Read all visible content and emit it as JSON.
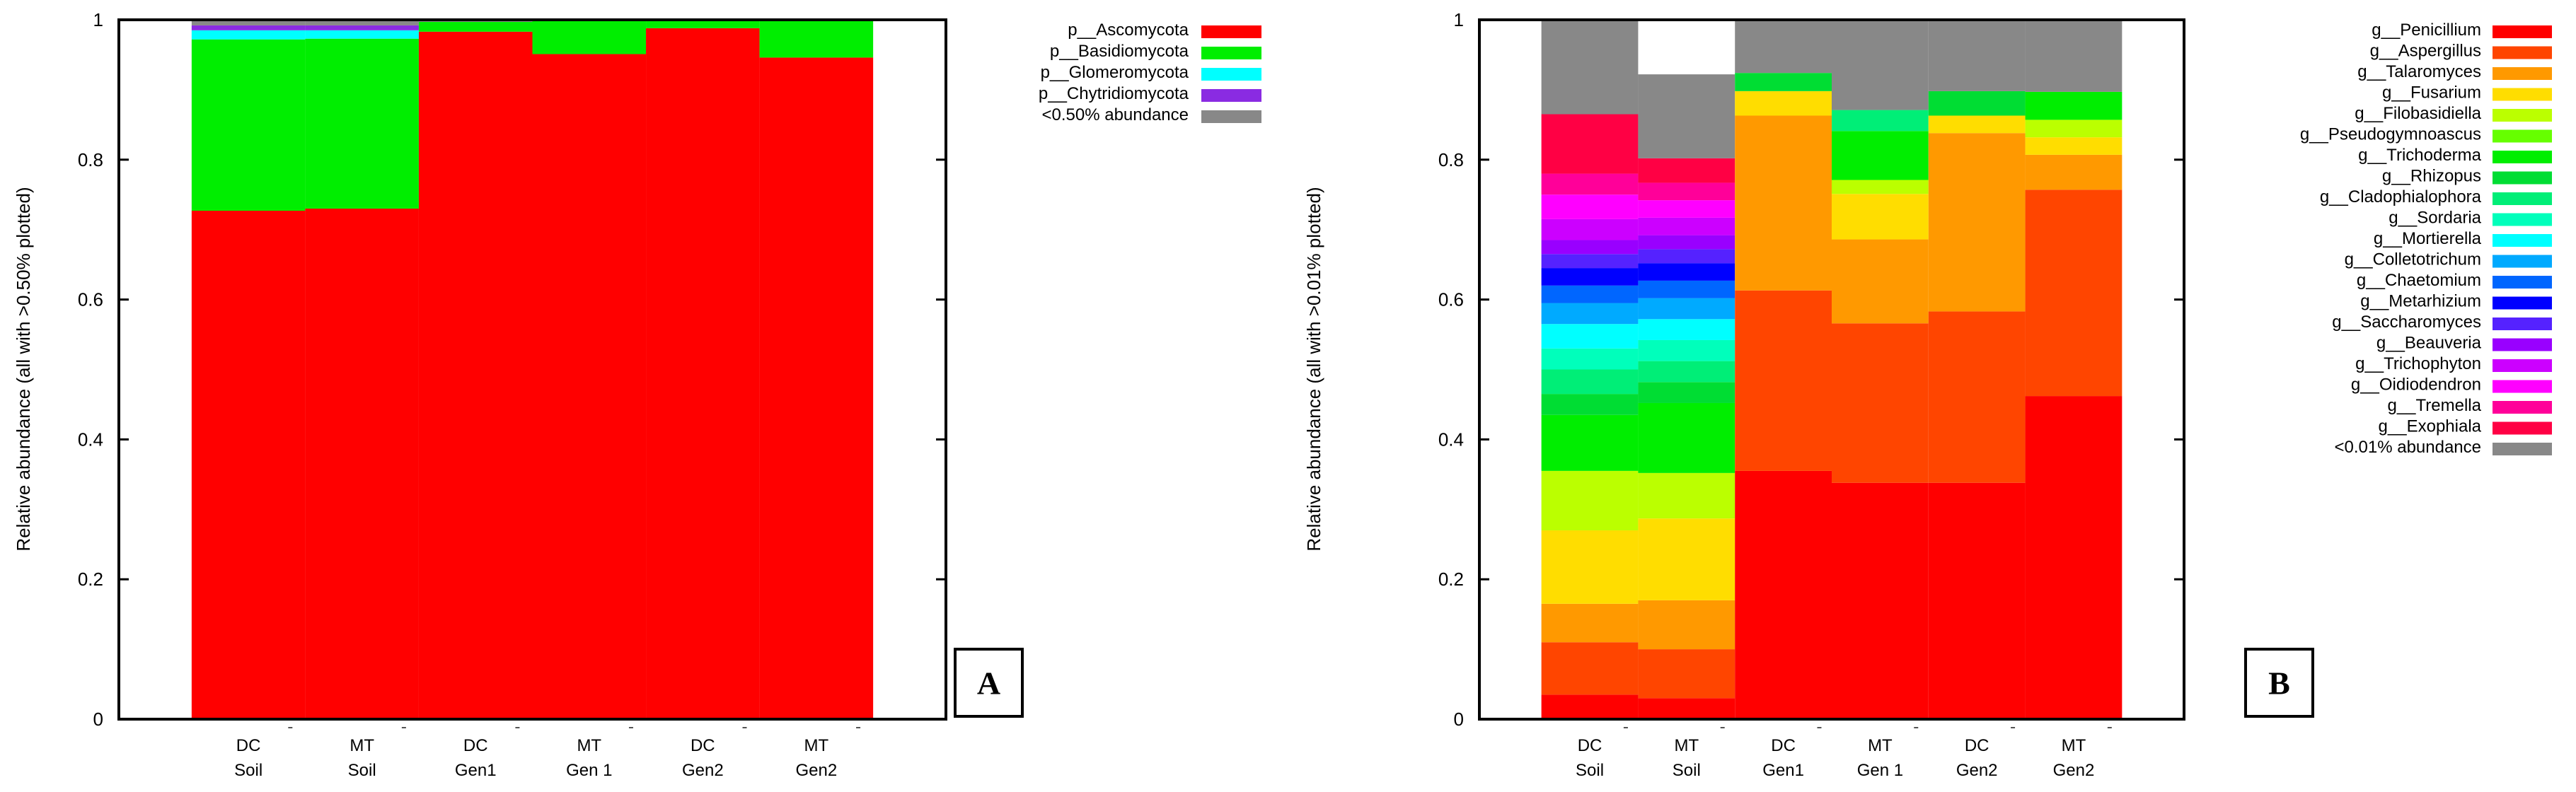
{
  "chart_data": [
    {
      "type": "bar",
      "stacked": true,
      "panel_label": "A",
      "ylabel": "Relative abundance (all with >0.50% plotted)",
      "ylim": [
        0,
        1
      ],
      "yticks": [
        "0",
        "0.2",
        "0.4",
        "0.6",
        "0.8",
        "1"
      ],
      "grid": false,
      "legend_position": "top-right",
      "categories": [
        [
          "DC",
          "Soil"
        ],
        [
          "MT",
          "Soil"
        ],
        [
          "DC",
          "Gen1"
        ],
        [
          "MT",
          "Gen 1"
        ],
        [
          "DC",
          "Gen2"
        ],
        [
          "MT",
          "Gen2"
        ]
      ],
      "series": [
        {
          "name": "p__Ascomycota",
          "color": "#ff0000",
          "values": [
            0.727,
            0.73,
            0.983,
            0.951,
            0.988,
            0.946
          ]
        },
        {
          "name": "p__Basidiomycota",
          "color": "#00ee00",
          "values": [
            0.245,
            0.243,
            0.014,
            0.047,
            0.011,
            0.052
          ]
        },
        {
          "name": "p__Glomeromycota",
          "color": "#00ffff",
          "values": [
            0.013,
            0.012,
            0.0,
            0.0,
            0.0,
            0.0
          ]
        },
        {
          "name": "p__Chytridiomycota",
          "color": "#8a2be2",
          "values": [
            0.007,
            0.007,
            0.0,
            0.0,
            0.0,
            0.0
          ]
        },
        {
          "name": "<0.50% abundance",
          "color": "#888888",
          "values": [
            0.008,
            0.008,
            0.003,
            0.002,
            0.001,
            0.002
          ]
        }
      ]
    },
    {
      "type": "bar",
      "stacked": true,
      "panel_label": "B",
      "ylabel": "Relative abundance (all with >0.01% plotted)",
      "ylim": [
        0,
        1
      ],
      "yticks": [
        "0",
        "0.2",
        "0.4",
        "0.6",
        "0.8",
        "1"
      ],
      "grid": false,
      "legend_position": "top-right",
      "categories": [
        [
          "DC",
          "Soil"
        ],
        [
          "MT",
          "Soil"
        ],
        [
          "DC",
          "Gen1"
        ],
        [
          "MT",
          "Gen 1"
        ],
        [
          "DC",
          "Gen2"
        ],
        [
          "MT",
          "Gen2"
        ]
      ],
      "series": [
        {
          "name": "g__Penicillium",
          "color": "#ff0000",
          "values": [
            0.035,
            0.03,
            0.355,
            0.338,
            0.338,
            0.462
          ]
        },
        {
          "name": "g__Aspergillus",
          "color": "#ff4500",
          "values": [
            0.075,
            0.07,
            0.258,
            0.228,
            0.245,
            0.295
          ]
        },
        {
          "name": "g__Talaromyces",
          "color": "#ff9900",
          "values": [
            0.055,
            0.07,
            0.25,
            0.12,
            0.255,
            0.05
          ]
        },
        {
          "name": "g__Fusarium",
          "color": "#ffdd00",
          "values": [
            0.105,
            0.117,
            0.035,
            0.065,
            0.025,
            0.025
          ]
        },
        {
          "name": "g__Filobasidiella",
          "color": "#bbff00",
          "values": [
            0.085,
            0.065,
            0.0,
            0.02,
            0.0,
            0.025
          ]
        },
        {
          "name": "g__Pseudogymnoascus",
          "color": "#66ff00",
          "values": [
            0.0,
            0.0,
            0.0,
            0.0,
            0.0,
            0.0
          ]
        },
        {
          "name": "g__Trichoderma",
          "color": "#00ee00",
          "values": [
            0.08,
            0.1,
            0.0,
            0.07,
            0.0,
            0.04
          ]
        },
        {
          "name": "g__Rhizopus",
          "color": "#00dd33",
          "values": [
            0.03,
            0.03,
            0.026,
            0.0,
            0.035,
            0.0
          ]
        },
        {
          "name": "g__Cladophialophora",
          "color": "#00ee77",
          "values": [
            0.035,
            0.03,
            0.0,
            0.03,
            0.0,
            0.0
          ]
        },
        {
          "name": "g__Sordaria",
          "color": "#00ffbb",
          "values": [
            0.03,
            0.03,
            0.0,
            0.0,
            0.0,
            0.0
          ]
        },
        {
          "name": "g__Mortierella",
          "color": "#00ffff",
          "values": [
            0.035,
            0.03,
            0.0,
            0.0,
            0.0,
            0.0
          ]
        },
        {
          "name": "g__Colletotrichum",
          "color": "#00aaff",
          "values": [
            0.03,
            0.03,
            0.0,
            0.0,
            0.0,
            0.0
          ]
        },
        {
          "name": "g__Chaetomium",
          "color": "#0066ff",
          "values": [
            0.025,
            0.025,
            0.0,
            0.0,
            0.0,
            0.0
          ]
        },
        {
          "name": "g__Metarhizium",
          "color": "#0000ff",
          "values": [
            0.025,
            0.025,
            0.0,
            0.0,
            0.0,
            0.0
          ]
        },
        {
          "name": "g__Saccharomyces",
          "color": "#5522ff",
          "values": [
            0.02,
            0.02,
            0.0,
            0.0,
            0.0,
            0.0
          ]
        },
        {
          "name": "g__Beauveria",
          "color": "#9900ff",
          "values": [
            0.02,
            0.02,
            0.0,
            0.0,
            0.0,
            0.0
          ]
        },
        {
          "name": "g__Trichophyton",
          "color": "#cc00ff",
          "values": [
            0.03,
            0.025,
            0.0,
            0.0,
            0.0,
            0.0
          ]
        },
        {
          "name": "g__Oidiodendron",
          "color": "#ff00ff",
          "values": [
            0.035,
            0.025,
            0.0,
            0.0,
            0.0,
            0.0
          ]
        },
        {
          "name": "g__Tremella",
          "color": "#ff0099",
          "values": [
            0.03,
            0.025,
            0.0,
            0.0,
            0.0,
            0.0
          ]
        },
        {
          "name": "g__Exophiala",
          "color": "#ff0044",
          "values": [
            0.085,
            0.035,
            0.0,
            0.0,
            0.0,
            0.0
          ]
        },
        {
          "name": "<0.01% abundance",
          "color": "#888888",
          "values": [
            0.135,
            0.12,
            0.076,
            0.129,
            0.102,
            0.103
          ]
        }
      ]
    }
  ]
}
